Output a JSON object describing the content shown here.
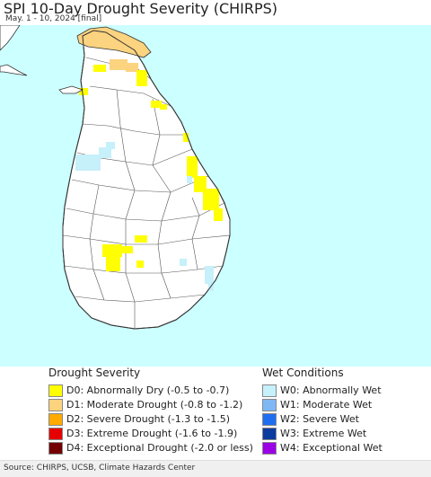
{
  "header": {
    "title": "SPI 10-Day Drought Severity (CHIRPS)",
    "subtitle": "May. 1 - 10, 2024 [final]"
  },
  "legend": {
    "drought": {
      "heading": "Drought Severity",
      "items": [
        {
          "label": "D0: Abnormally Dry (-0.5 to -0.7)",
          "color": "#ffff00"
        },
        {
          "label": "D1: Moderate Drought (-0.8 to -1.2)",
          "color": "#fcd37f"
        },
        {
          "label": "D2: Severe Drought (-1.3 to -1.5)",
          "color": "#ffaa00"
        },
        {
          "label": "D3: Extreme Drought (-1.6 to -1.9)",
          "color": "#e60000"
        },
        {
          "label": "D4: Exceptional Drought (-2.0 or less)",
          "color": "#730000"
        }
      ]
    },
    "wet": {
      "heading": "Wet Conditions",
      "items": [
        {
          "label": "W0: Abnormally Wet",
          "color": "#c6f0fa"
        },
        {
          "label": "W1: Moderate Wet",
          "color": "#7fb8f5"
        },
        {
          "label": "W2: Severe Wet",
          "color": "#1e6ef0"
        },
        {
          "label": "W3: Extreme Wet",
          "color": "#0a3ca0"
        },
        {
          "label": "W4: Exceptional Wet",
          "color": "#9b00e6"
        }
      ]
    }
  },
  "colors": {
    "sea": "#ccffff",
    "land": "#ffffff",
    "border": "#333333"
  },
  "footer": {
    "source": "Source: CHIRPS, UCSB, Climate Hazards Center"
  }
}
